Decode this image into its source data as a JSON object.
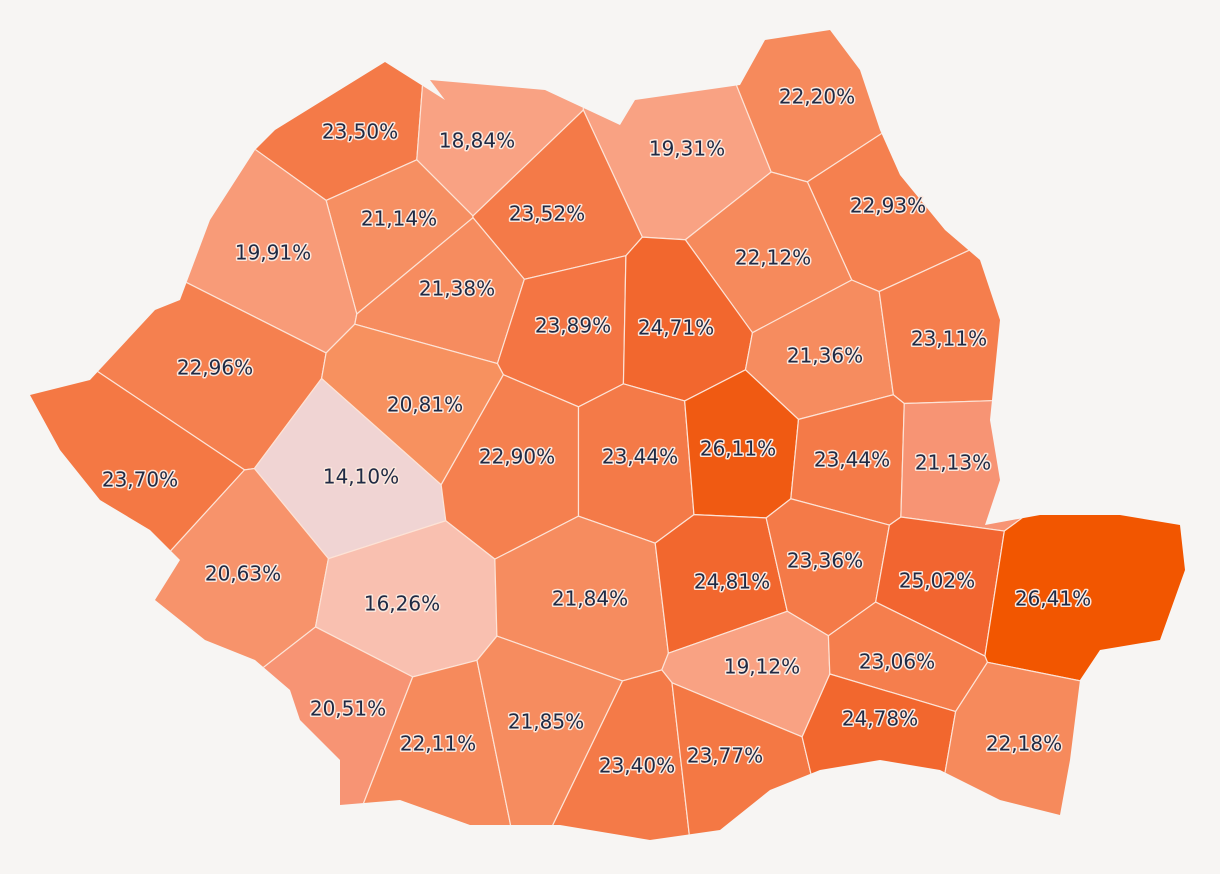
{
  "regions": [
    {
      "label": "23,50%",
      "color": "#f47a48"
    },
    {
      "label": "18,84%",
      "color": "#f9a283"
    },
    {
      "label": "19,31%",
      "color": "#f9a283"
    },
    {
      "label": "22,20%",
      "color": "#f68a5c"
    },
    {
      "label": "21,14%",
      "color": "#f68f62"
    },
    {
      "label": "23,52%",
      "color": "#f47a48"
    },
    {
      "label": "22,93%",
      "color": "#f5804f"
    },
    {
      "label": "19,91%",
      "color": "#f89b78"
    },
    {
      "label": "21,38%",
      "color": "#f68c5f"
    },
    {
      "label": "22,12%",
      "color": "#f68a5c"
    },
    {
      "label": "23,89%",
      "color": "#f47543"
    },
    {
      "label": "24,71%",
      "color": "#f2672e"
    },
    {
      "label": "21,36%",
      "color": "#f68c5f"
    },
    {
      "label": "23,11%",
      "color": "#f57e4d"
    },
    {
      "label": "22,96%",
      "color": "#f5804f"
    },
    {
      "label": "20,81%",
      "color": "#f7915f"
    },
    {
      "label": "14,10%",
      "color": "#f0d4d3"
    },
    {
      "label": "22,90%",
      "color": "#f5804f"
    },
    {
      "label": "23,44%",
      "color": "#f47a48"
    },
    {
      "label": "26,11%",
      "color": "#f05a12"
    },
    {
      "label": "23,44%",
      "color": "#f47a48"
    },
    {
      "label": "21,13%",
      "color": "#f79474"
    },
    {
      "label": "23,70%",
      "color": "#f47844"
    },
    {
      "label": "20,63%",
      "color": "#f7936b"
    },
    {
      "label": "16,26%",
      "color": "#f9c0b0"
    },
    {
      "label": "21,84%",
      "color": "#f68c5f"
    },
    {
      "label": "24,81%",
      "color": "#f2672e"
    },
    {
      "label": "23,36%",
      "color": "#f47a48"
    },
    {
      "label": "25,02%",
      "color": "#f26530"
    },
    {
      "label": "26,41%",
      "color": "#f25600"
    },
    {
      "label": "19,12%",
      "color": "#f9a283"
    },
    {
      "label": "23,06%",
      "color": "#f57e4d"
    },
    {
      "label": "20,51%",
      "color": "#f79474"
    },
    {
      "label": "22,11%",
      "color": "#f68a5c"
    },
    {
      "label": "21,85%",
      "color": "#f68c5f"
    },
    {
      "label": "23,40%",
      "color": "#f47a48"
    },
    {
      "label": "23,77%",
      "color": "#f47844"
    },
    {
      "label": "24,78%",
      "color": "#f2672e"
    },
    {
      "label": "22,18%",
      "color": "#f68a5c"
    }
  ]
}
